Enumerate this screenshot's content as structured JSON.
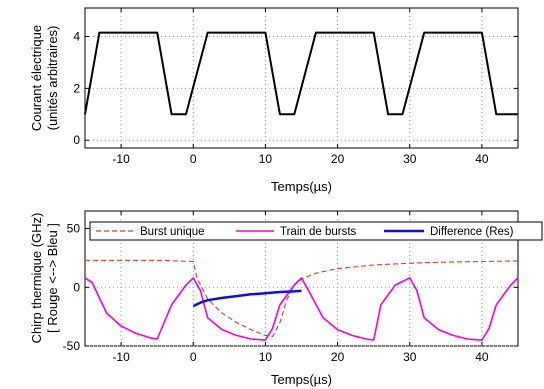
{
  "chart_data": [
    {
      "type": "line",
      "xlabel": "Temps(µs)",
      "ylabel_line1": "Courant électrique",
      "ylabel_line2": "(unités arbitraires)",
      "xlim": [
        -15,
        45
      ],
      "ylim": [
        -0.3,
        5.1
      ],
      "xticks": [
        -10,
        0,
        10,
        20,
        30,
        40
      ],
      "yticks": [
        0,
        2,
        4
      ],
      "grid": true,
      "series": [
        {
          "color": "#000000",
          "style": "solid",
          "x": [
            -15,
            -13,
            -11,
            -5,
            -3,
            -1,
            2,
            4,
            10,
            12,
            14,
            17,
            19,
            25,
            27,
            29,
            32,
            34,
            40,
            42,
            44,
            45
          ],
          "y": [
            1.0,
            4.15,
            4.15,
            4.15,
            1.0,
            1.0,
            4.15,
            4.15,
            4.15,
            1.0,
            1.0,
            4.15,
            4.15,
            4.15,
            1.0,
            1.0,
            4.15,
            4.15,
            4.15,
            1.0,
            1.0,
            1.0
          ]
        }
      ]
    },
    {
      "type": "line",
      "xlabel": "Temps(µs)",
      "ylabel_line1": "Chirp thermique (GHz)",
      "ylabel_line2": "[ Rouge <--> Bleu ]",
      "xlim": [
        -15,
        45
      ],
      "ylim": [
        -50,
        65
      ],
      "xticks": [
        -10,
        0,
        10,
        20,
        30,
        40
      ],
      "yticks": [
        -50,
        0,
        50
      ],
      "grid": true,
      "legend_position": "top",
      "series": [
        {
          "name": "Burst unique",
          "color": "#e8372b",
          "style": "dashed",
          "x": [
            -15,
            -5,
            0,
            0.5,
            2,
            4,
            6,
            8,
            10,
            11,
            12,
            13,
            14,
            15,
            17,
            20,
            25,
            30,
            35,
            40,
            45
          ],
          "y": [
            23,
            23,
            22,
            8,
            -10,
            -22,
            -30,
            -36,
            -41,
            -42,
            -30,
            -10,
            2,
            7,
            12,
            16,
            19,
            20.5,
            21.5,
            22,
            22.5
          ]
        },
        {
          "name": "Train de bursts",
          "color": "#f000f0",
          "style": "solid",
          "x": [
            -15,
            -14,
            -12,
            -10,
            -8,
            -6,
            -5,
            -3,
            -1,
            0,
            1,
            2,
            4,
            6,
            8,
            10,
            11,
            12,
            14,
            15,
            16,
            18,
            20,
            22,
            24,
            25,
            26,
            28,
            30,
            31,
            32,
            34,
            36,
            38,
            40,
            41,
            42,
            44,
            45
          ],
          "y": [
            8,
            4,
            -22,
            -33,
            -39,
            -43,
            -44,
            -15,
            2,
            8,
            -3,
            -26,
            -36,
            -41,
            -44,
            -45,
            -35,
            -15,
            2,
            8,
            -3,
            -26,
            -36,
            -41,
            -44,
            -45,
            -15,
            2,
            8,
            -3,
            -26,
            -36,
            -41,
            -44,
            -45,
            -35,
            -15,
            2,
            8
          ]
        },
        {
          "name": "Difference (Res)",
          "color": "#1010d0",
          "style": "solid",
          "x": [
            0,
            1,
            2,
            4,
            6,
            8,
            10,
            12,
            14,
            15
          ],
          "y": [
            -16,
            -13,
            -11,
            -9,
            -7.5,
            -6,
            -5,
            -4,
            -3.5,
            -3
          ]
        }
      ]
    }
  ]
}
